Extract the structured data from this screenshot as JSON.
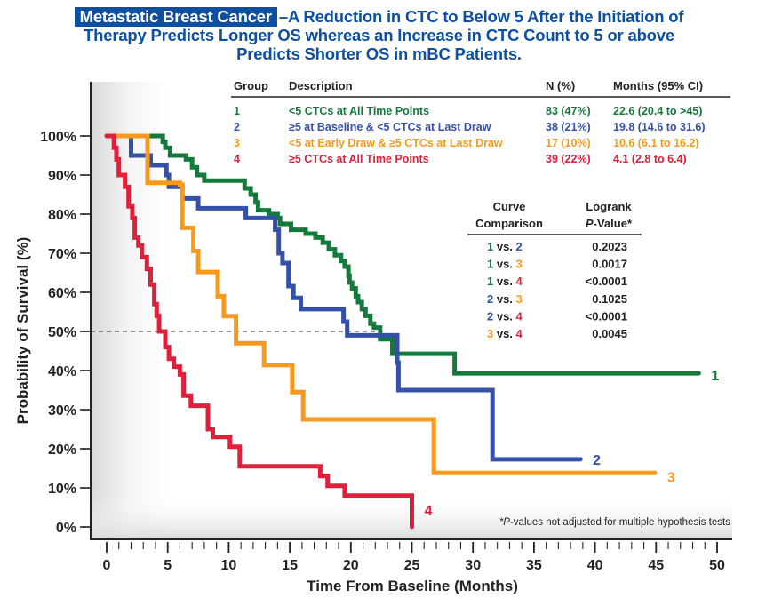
{
  "title": {
    "badge": "Metastatic Breast Cancer",
    "line1_rest": "–A Reduction in CTC to Below 5 After the Initiation of",
    "line2": "Therapy Predicts Longer OS whereas an Increase in CTC Count to 5 or above",
    "line3": "Predicts Shorter OS in mBC Patients."
  },
  "colors": {
    "title": "#0d4fa0",
    "group1": "#137a3c",
    "group2": "#3550a8",
    "group3": "#f7991d",
    "group4": "#e0203a",
    "text": "#222222"
  },
  "group_table": {
    "headers": [
      "Group",
      "Description",
      "N (%)",
      "Months (95% CI)"
    ],
    "rows": [
      {
        "group": "1",
        "description": "<5 CTCs at All Time Points",
        "n": "83 (47%)",
        "months": "22.6  (20.4 to >45)",
        "color": "#137a3c"
      },
      {
        "group": "2",
        "description": "≥5 at Baseline & <5 CTCs at Last Draw",
        "n": "38 (21%)",
        "months": "19.8  (14.6 to 31.6)",
        "color": "#3550a8"
      },
      {
        "group": "3",
        "description": "<5 at Early Draw & ≥5 CTCs at Last Draw",
        "n": "17 (10%)",
        "months": "10.6  (6.1 to 16.2)",
        "color": "#f7991d"
      },
      {
        "group": "4",
        "description": "≥5 CTCs at All Time Points",
        "n": "39 (22%)",
        "months": "4.1  (2.8 to 6.4)",
        "color": "#e0203a"
      }
    ]
  },
  "logrank_table": {
    "header_col1": [
      "Curve",
      "Comparison"
    ],
    "header_col2_line1": "Logrank",
    "header_col2_p": "P",
    "header_col2_rest": "-Value*",
    "vs_label": "vs.",
    "rows": [
      {
        "a": "1",
        "b": "2",
        "p": "0.2023"
      },
      {
        "a": "1",
        "b": "3",
        "p": "0.0017"
      },
      {
        "a": "1",
        "b": "4",
        "p": "<0.0001"
      },
      {
        "a": "2",
        "b": "3",
        "p": "0.1025"
      },
      {
        "a": "2",
        "b": "4",
        "p": "<0.0001"
      },
      {
        "a": "3",
        "b": "4",
        "p": "0.0045"
      }
    ]
  },
  "footnote": {
    "star_p": "*P",
    "rest": "-values not adjusted for multiple hypothesis tests"
  },
  "chart_data": {
    "type": "line",
    "subtype": "kaplan-meier step",
    "title": "Metastatic Breast Cancer –A Reduction in CTC to Below 5 After the Initiation of Therapy Predicts Longer OS whereas an Increase in CTC Count to 5 or above Predicts Shorter OS in mBC Patients.",
    "xlabel": "Time From Baseline (Months)",
    "ylabel": "Probability of Survival (%)",
    "xlim": [
      0,
      50
    ],
    "ylim": [
      0,
      100
    ],
    "xticks": [
      "0",
      "5",
      "10",
      "15",
      "20",
      "25",
      "30",
      "35",
      "40",
      "45",
      "50"
    ],
    "yticks": [
      "0%",
      "10%",
      "20%",
      "30%",
      "40%",
      "50%",
      "60%",
      "70%",
      "80%",
      "90%",
      "100%"
    ],
    "reference_line": {
      "y": 50,
      "style": "dashed",
      "x_end": 22.6
    },
    "grid": false,
    "series": [
      {
        "name": "1",
        "color": "#137a3c",
        "points": [
          [
            0,
            100
          ],
          [
            4.4,
            100
          ],
          [
            4.6,
            98.5
          ],
          [
            4.8,
            97
          ],
          [
            5.2,
            95
          ],
          [
            6.5,
            94
          ],
          [
            7.0,
            92
          ],
          [
            7.4,
            90
          ],
          [
            8.0,
            88.6
          ],
          [
            11.3,
            86.6
          ],
          [
            11.8,
            85
          ],
          [
            12.2,
            83
          ],
          [
            12.4,
            81
          ],
          [
            13.3,
            80
          ],
          [
            14.0,
            79
          ],
          [
            14.2,
            77.5
          ],
          [
            15.1,
            76
          ],
          [
            16.3,
            75
          ],
          [
            17.1,
            74
          ],
          [
            17.7,
            72.7
          ],
          [
            18.2,
            71
          ],
          [
            18.7,
            69.5
          ],
          [
            19.2,
            68
          ],
          [
            19.5,
            66.6
          ],
          [
            19.8,
            64.3
          ],
          [
            19.9,
            62.5
          ],
          [
            20.1,
            61
          ],
          [
            20.4,
            59
          ],
          [
            20.6,
            57.5
          ],
          [
            20.9,
            55.7
          ],
          [
            21.2,
            54
          ],
          [
            21.6,
            52
          ],
          [
            21.9,
            51
          ],
          [
            22.4,
            48
          ],
          [
            23.4,
            44.3
          ],
          [
            28.5,
            39.3
          ],
          [
            48.5,
            39.3
          ]
        ]
      },
      {
        "name": "2",
        "color": "#3550a8",
        "points": [
          [
            2.0,
            100
          ],
          [
            2.0,
            95
          ],
          [
            3.6,
            92.5
          ],
          [
            4.9,
            90
          ],
          [
            5.1,
            87
          ],
          [
            6.2,
            84
          ],
          [
            7.5,
            81.5
          ],
          [
            11.4,
            79
          ],
          [
            13.8,
            76
          ],
          [
            14.1,
            70
          ],
          [
            14.4,
            67.5
          ],
          [
            14.9,
            61.6
          ],
          [
            15.3,
            58.6
          ],
          [
            15.9,
            55.7
          ],
          [
            19.4,
            52.5
          ],
          [
            19.7,
            49
          ],
          [
            23.8,
            42
          ],
          [
            23.9,
            35
          ],
          [
            31.6,
            17.3
          ],
          [
            38.8,
            17.3
          ]
        ]
      },
      {
        "name": "3",
        "color": "#f7991d",
        "points": [
          [
            0,
            100
          ],
          [
            3.35,
            100
          ],
          [
            3.35,
            88
          ],
          [
            6.0,
            87.5
          ],
          [
            6.2,
            76.5
          ],
          [
            7.1,
            70.6
          ],
          [
            7.5,
            65.2
          ],
          [
            9.1,
            59
          ],
          [
            9.6,
            53.9
          ],
          [
            10.6,
            47
          ],
          [
            12.9,
            41.4
          ],
          [
            15.2,
            34.5
          ],
          [
            16.1,
            27.5
          ],
          [
            26.8,
            13.8
          ],
          [
            44.9,
            13.8
          ]
        ]
      },
      {
        "name": "4",
        "color": "#e0203a",
        "points": [
          [
            0,
            100
          ],
          [
            0.5,
            100
          ],
          [
            0.6,
            97
          ],
          [
            0.8,
            94
          ],
          [
            1.0,
            90
          ],
          [
            1.5,
            87
          ],
          [
            1.8,
            82
          ],
          [
            2.1,
            79
          ],
          [
            2.3,
            74
          ],
          [
            2.6,
            72
          ],
          [
            2.9,
            69
          ],
          [
            3.3,
            66
          ],
          [
            3.6,
            62
          ],
          [
            3.9,
            57
          ],
          [
            4.1,
            54
          ],
          [
            4.3,
            50
          ],
          [
            4.8,
            46
          ],
          [
            5.1,
            43
          ],
          [
            5.5,
            41
          ],
          [
            6.0,
            39
          ],
          [
            6.3,
            33.6
          ],
          [
            6.9,
            31
          ],
          [
            8.3,
            25
          ],
          [
            8.7,
            23
          ],
          [
            10.1,
            20.5
          ],
          [
            10.9,
            15.5
          ],
          [
            17.3,
            15.5
          ],
          [
            17.5,
            13
          ],
          [
            18.1,
            10.5
          ],
          [
            19.5,
            8
          ],
          [
            25.0,
            8
          ],
          [
            25.0,
            0
          ]
        ]
      }
    ]
  }
}
